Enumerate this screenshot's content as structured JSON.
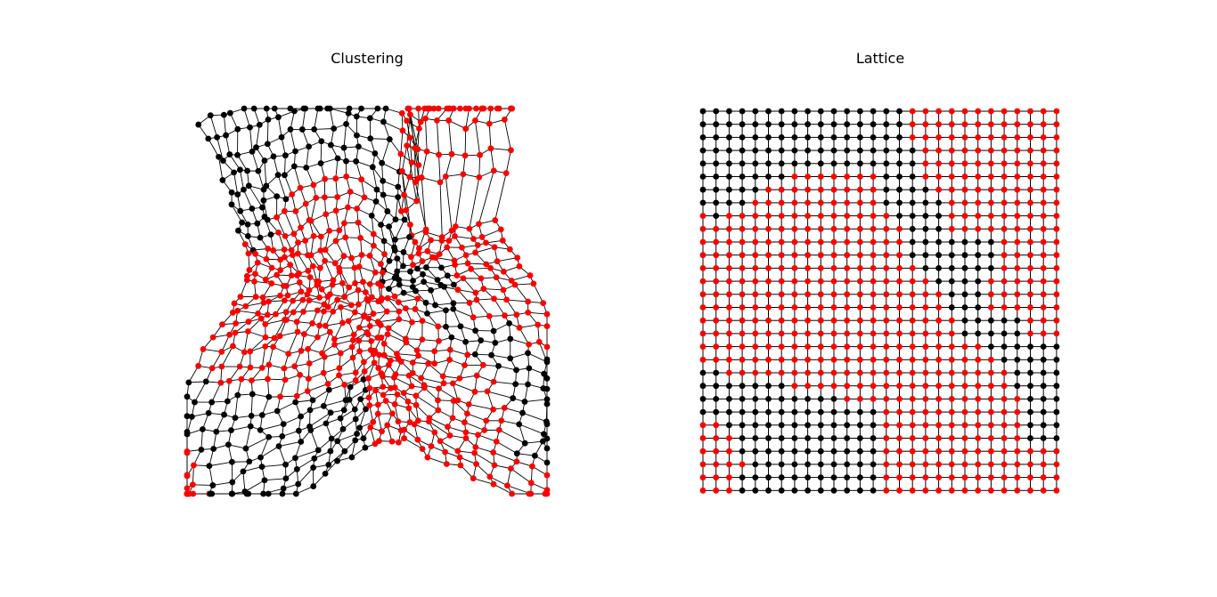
{
  "figure": {
    "left_title": "Clustering",
    "right_title": "Lattice"
  },
  "colors": {
    "cluster_a": "#000000",
    "cluster_b": "#ff0000",
    "edge": "#000000",
    "background": "#ffffff"
  },
  "lattice": {
    "rows": 30,
    "cols": 28,
    "grid_mask_rows": [
      "0000000000000000111111111111",
      "0000000000000000111111111111",
      "0000000000000000111111111111",
      "0000000000000000011111111111",
      "0000000000000000011111111111",
      "0000000111111100011111111111",
      "0000011111111100001111111111",
      "0000111111111100000111111111",
      "1011111111111110000111111111",
      "1111111111111111000111111111",
      "1111111111111111000000011111",
      "1111111111111111000000011111",
      "1111111111111111100000011111",
      "1111111111111111110000111111",
      "1111111111111111111000111111",
      "1111111111111111111000111111",
      "1111111111111111111100000111",
      "1111111111111111111100000111",
      "1111111111111111111111000000",
      "1111111111111111111111100000",
      "0011111111111111111111110000",
      "0000000111111111111111110000",
      "0000000000011111111111111000",
      "0000000000000011111111111000",
      "1100000000000011111111111000",
      "1110000000000011111111111000",
      "1110000000000011111111111111",
      "1111000000000011111111111111",
      "1110000000000011111111111111",
      "1110000000000011111111111111"
    ]
  }
}
